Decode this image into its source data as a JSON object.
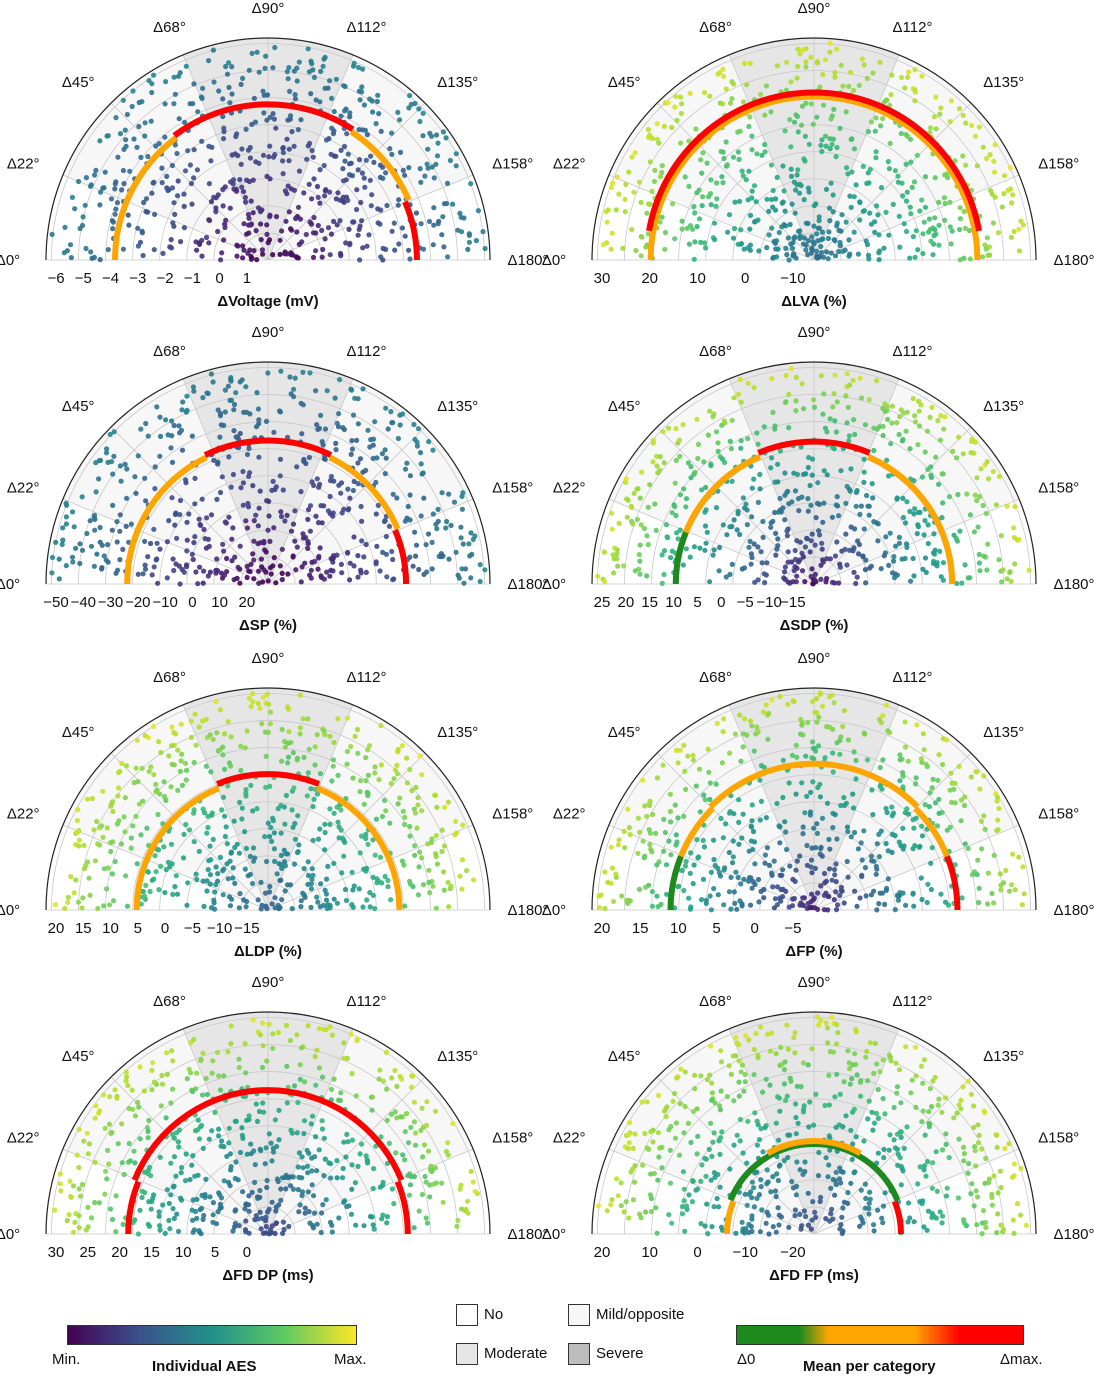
{
  "chart_data": [
    {
      "type": "polar-scatter",
      "xlabel": "ΔVoltage (mV)",
      "radial_ticks": [
        "−6",
        "−5",
        "−4",
        "−3",
        "−2",
        "−1",
        "0",
        "1"
      ],
      "rmin": -6.6,
      "rmax": 1.6,
      "color_min": 0.0,
      "color_max": 0.45,
      "seed": 1,
      "arcs": [
        {
          "a0": 0,
          "a1": 53,
          "r": -0.95,
          "color": "orange"
        },
        {
          "a0": 53,
          "a1": 123,
          "r": -0.85,
          "color": "red"
        },
        {
          "a0": 123,
          "a1": 157,
          "r": -0.95,
          "color": "orange"
        },
        {
          "a0": 157,
          "a1": 180,
          "r": -1.1,
          "color": "red"
        }
      ]
    },
    {
      "type": "polar-scatter",
      "xlabel": "ΔLVA (%)",
      "radial_ticks": [
        "30",
        "20",
        "10",
        "0",
        "−10"
      ],
      "rmin": 34,
      "rmax": -19,
      "color_min": 0.35,
      "color_max": 0.95,
      "seed": 2,
      "arcs": [
        {
          "a0": 0,
          "a1": 180,
          "r": -5,
          "color": "orange"
        },
        {
          "a0": 10,
          "a1": 170,
          "r": -6,
          "color": "red"
        }
      ]
    },
    {
      "type": "polar-scatter",
      "xlabel": "ΔSP (%)",
      "radial_ticks": [
        "−50",
        "−40",
        "−30",
        "−20",
        "−10",
        "0",
        "10",
        "20"
      ],
      "rmin": -55,
      "rmax": 27,
      "color_min": 0.0,
      "color_max": 0.45,
      "seed": 3,
      "arcs": [
        {
          "a0": 0,
          "a1": 64,
          "r": -3,
          "color": "orange"
        },
        {
          "a0": 64,
          "a1": 116,
          "r": -2,
          "color": "red"
        },
        {
          "a0": 116,
          "a1": 157,
          "r": -3,
          "color": "orange"
        },
        {
          "a0": 157,
          "a1": 180,
          "r": -4,
          "color": "red"
        }
      ]
    },
    {
      "type": "polar-scatter",
      "xlabel": "ΔSDP (%)",
      "radial_ticks": [
        "25",
        "20",
        "15",
        "10",
        "5",
        "0",
        "−5",
        "−10",
        "−15"
      ],
      "rmin": 28,
      "rmax": -25,
      "color_min": 0.05,
      "color_max": 0.95,
      "seed": 4,
      "arcs": [
        {
          "a0": 0,
          "a1": 22,
          "r": -5,
          "color": "green"
        },
        {
          "a0": 22,
          "a1": 67,
          "r": -5,
          "color": "orange"
        },
        {
          "a0": 67,
          "a1": 113,
          "r": -6,
          "color": "red"
        },
        {
          "a0": 113,
          "a1": 180,
          "r": -5,
          "color": "orange"
        }
      ]
    },
    {
      "type": "polar-scatter",
      "xlabel": "ΔLDP (%)",
      "radial_ticks": [
        "20",
        "15",
        "10",
        "5",
        "0",
        "−5",
        "−10",
        "−15"
      ],
      "rmin": 24,
      "rmax": -25,
      "color_min": 0.3,
      "color_max": 0.95,
      "seed": 5,
      "arcs": [
        {
          "a0": 0,
          "a1": 68,
          "r": -5,
          "color": "orange"
        },
        {
          "a0": 68,
          "a1": 112,
          "r": -6,
          "color": "red"
        },
        {
          "a0": 112,
          "a1": 180,
          "r": -5,
          "color": "orange"
        }
      ]
    },
    {
      "type": "polar-scatter",
      "xlabel": "ΔFP (%)",
      "radial_ticks": [
        "20",
        "15",
        "10",
        "5",
        "0",
        "−5"
      ],
      "rmin": 24,
      "rmax": -17,
      "color_min": 0.1,
      "color_max": 0.95,
      "seed": 6,
      "arcs": [
        {
          "a0": 0,
          "a1": 22,
          "r": -2.5,
          "color": "green"
        },
        {
          "a0": 22,
          "a1": 45,
          "r": -2.5,
          "color": "orange"
        },
        {
          "a0": 45,
          "a1": 135,
          "r": -3,
          "color": "orange"
        },
        {
          "a0": 135,
          "a1": 158,
          "r": -2.5,
          "color": "orange"
        },
        {
          "a0": 158,
          "a1": 180,
          "r": -2.5,
          "color": "red"
        }
      ]
    },
    {
      "type": "polar-scatter",
      "xlabel": "ΔFD DP (ms)",
      "radial_ticks": [
        "30",
        "25",
        "20",
        "15",
        "10",
        "5",
        "0"
      ],
      "rmin": 32,
      "rmax": -22,
      "color_min": 0.2,
      "color_max": 0.95,
      "seed": 7,
      "arcs": [
        {
          "a0": 0,
          "a1": 22,
          "r": -2,
          "color": "red"
        },
        {
          "a0": 22,
          "a1": 158,
          "r": -3,
          "color": "red"
        },
        {
          "a0": 158,
          "a1": 180,
          "r": -2,
          "color": "red"
        }
      ]
    },
    {
      "type": "polar-scatter",
      "xlabel": "ΔFD FP (ms)",
      "radial_ticks": [
        "20",
        "10",
        "0",
        "−10",
        "−20"
      ],
      "rmin": 27,
      "rmax": -47,
      "color_min": 0.2,
      "color_max": 0.95,
      "seed": 8,
      "arcs": [
        {
          "a0": 0,
          "a1": 22,
          "r": -2,
          "color": "orange"
        },
        {
          "a0": 22,
          "a1": 158,
          "r": -3,
          "color": "green"
        },
        {
          "a0": 60,
          "a1": 120,
          "r": -4,
          "color": "orange"
        },
        {
          "a0": 158,
          "a1": 180,
          "r": -2,
          "color": "red"
        }
      ]
    }
  ],
  "angle_labels": [
    "Δ0°",
    "Δ22°",
    "Δ45°",
    "Δ68°",
    "Δ90°",
    "Δ112°",
    "Δ135°",
    "Δ158°",
    "Δ180°"
  ],
  "sector_categories": [
    "no",
    "mild",
    "mild",
    "moderate",
    "moderate",
    "mild",
    "mild",
    "no"
  ],
  "legend": {
    "colorbar_min": "Min.",
    "colorbar_max": "Max.",
    "colorbar_title": "Individual AES",
    "no": "No",
    "mild": "Mild/opposite",
    "moderate": "Moderate",
    "severe": "Severe",
    "mean_min": "Δ0",
    "mean_max": "Δmax.",
    "mean_title": "Mean per category"
  },
  "colors": {
    "no": "#ffffff",
    "mild": "#f7f7f7",
    "moderate": "#e6e6e6",
    "severe": "#bdbdbd",
    "green": "#1e8a1e",
    "orange": "#ffa500",
    "red": "#ff0000"
  }
}
